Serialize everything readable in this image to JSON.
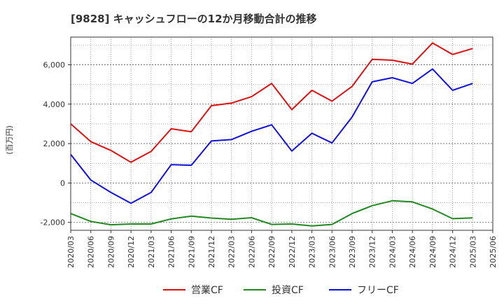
{
  "chart_data": {
    "type": "line",
    "title": "[9828]  キャッシュフローの12か月移動合計の推移",
    "ylabel": "(百万円)",
    "xlabel": "",
    "ylim": [
      -2400,
      7400
    ],
    "y_ticks": [
      -2000,
      0,
      2000,
      4000,
      6000
    ],
    "y_tick_labels": [
      "-2,000",
      "0",
      "2,000",
      "4,000",
      "6,000"
    ],
    "categories": [
      "2020/03",
      "2020/06",
      "2020/09",
      "2020/12",
      "2021/03",
      "2021/06",
      "2021/09",
      "2021/12",
      "2022/03",
      "2022/06",
      "2022/09",
      "2022/12",
      "2023/03",
      "2023/06",
      "2023/09",
      "2023/12",
      "2024/03",
      "2024/06",
      "2024/09",
      "2024/12",
      "2025/03",
      "2025/06"
    ],
    "series": [
      {
        "name": "営業CF",
        "color": "#dd1111",
        "values": [
          3000,
          2100,
          1650,
          1050,
          1600,
          2750,
          2600,
          3920,
          4050,
          4380,
          5050,
          3720,
          4700,
          4150,
          4900,
          6270,
          6230,
          6030,
          7100,
          6520,
          6820,
          null
        ]
      },
      {
        "name": "投資CF",
        "color": "#228822",
        "values": [
          -1550,
          -1950,
          -2120,
          -2080,
          -2080,
          -1820,
          -1680,
          -1780,
          -1840,
          -1760,
          -2100,
          -2080,
          -2180,
          -2100,
          -1550,
          -1150,
          -900,
          -960,
          -1320,
          -1810,
          -1770,
          null
        ]
      },
      {
        "name": "フリーCF",
        "color": "#1111dd",
        "values": [
          1450,
          150,
          -480,
          -1030,
          -480,
          930,
          900,
          2130,
          2200,
          2620,
          2950,
          1620,
          2520,
          2030,
          3350,
          5130,
          5340,
          5050,
          5780,
          4700,
          5050,
          null
        ]
      }
    ],
    "grid": true,
    "legend": "bottom-center"
  }
}
